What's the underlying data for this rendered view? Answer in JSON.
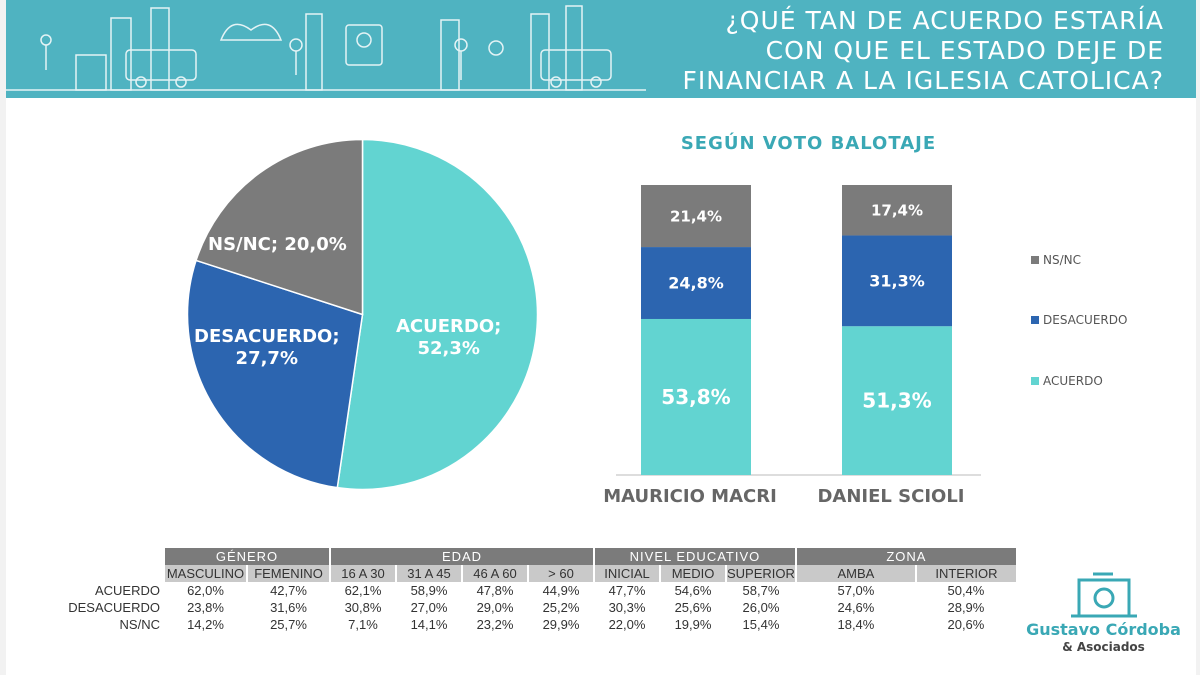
{
  "header": {
    "title_lines": [
      "¿QUÉ TAN DE ACUERDO ESTARÍA",
      "CON QUE EL ESTADO DEJE DE",
      "FINANCIAR A LA IGLESIA CATOLICA?"
    ]
  },
  "colors": {
    "header_bg": "#4fb3c1",
    "acuerdo": "#62d4d1",
    "desacuerdo": "#2c65b0",
    "nsnc": "#7b7b7b"
  },
  "chart_data": [
    {
      "type": "pie",
      "slices": [
        {
          "name": "ACUERDO",
          "value": 52.3,
          "label_line1": "ACUERDO;",
          "label_line2": "52,3%"
        },
        {
          "name": "DESACUERDO",
          "value": 27.7,
          "label_line1": "DESACUERDO;",
          "label_line2": "27,7%"
        },
        {
          "name": "NS/NC",
          "value": 20.0,
          "label_line1": "NS/NC; 20,0%",
          "label_line2": ""
        }
      ]
    },
    {
      "type": "bar",
      "stacked": true,
      "title": "SEGÚN VOTO BALOTAJE",
      "categories": [
        "MAURICIO MACRI",
        "DANIEL SCIOLI"
      ],
      "series": [
        {
          "name": "ACUERDO",
          "values": [
            53.8,
            51.3
          ],
          "labels": [
            "53,8%",
            "51,3%"
          ]
        },
        {
          "name": "DESACUERDO",
          "values": [
            24.8,
            31.3
          ],
          "labels": [
            "24,8%",
            "31,3%"
          ]
        },
        {
          "name": "NS/NC",
          "values": [
            21.4,
            17.4
          ],
          "labels": [
            "21,4%",
            "17,4%"
          ]
        }
      ],
      "legend": [
        "NS/NC",
        "DESACUERDO",
        "ACUERDO"
      ],
      "legend_position": "right"
    }
  ],
  "table": {
    "groups": [
      {
        "name": "GÉNERO",
        "cols": [
          "MASCULINO",
          "FEMENINO"
        ]
      },
      {
        "name": "EDAD",
        "cols": [
          "16 A 30",
          "31 A 45",
          "46 A 60",
          "> 60"
        ]
      },
      {
        "name": "NIVEL EDUCATIVO",
        "cols": [
          "INICIAL",
          "MEDIO",
          "SUPERIOR"
        ]
      },
      {
        "name": "ZONA",
        "cols": [
          "AMBA",
          "INTERIOR"
        ]
      }
    ],
    "rows": [
      {
        "label": "ACUERDO",
        "values": [
          "62,0%",
          "42,7%",
          "62,1%",
          "58,9%",
          "47,8%",
          "44,9%",
          "47,7%",
          "54,6%",
          "58,7%",
          "57,0%",
          "50,4%"
        ]
      },
      {
        "label": "DESACUERDO",
        "values": [
          "23,8%",
          "31,6%",
          "30,8%",
          "27,0%",
          "29,0%",
          "25,2%",
          "30,3%",
          "25,6%",
          "26,0%",
          "24,6%",
          "28,9%"
        ]
      },
      {
        "label": "NS/NC",
        "values": [
          "14,2%",
          "25,7%",
          "7,1%",
          "14,1%",
          "23,2%",
          "29,9%",
          "22,0%",
          "19,9%",
          "15,4%",
          "18,4%",
          "20,6%"
        ]
      }
    ]
  },
  "logo": {
    "name": "Gustavo Córdoba",
    "sub": "& Asociados"
  }
}
